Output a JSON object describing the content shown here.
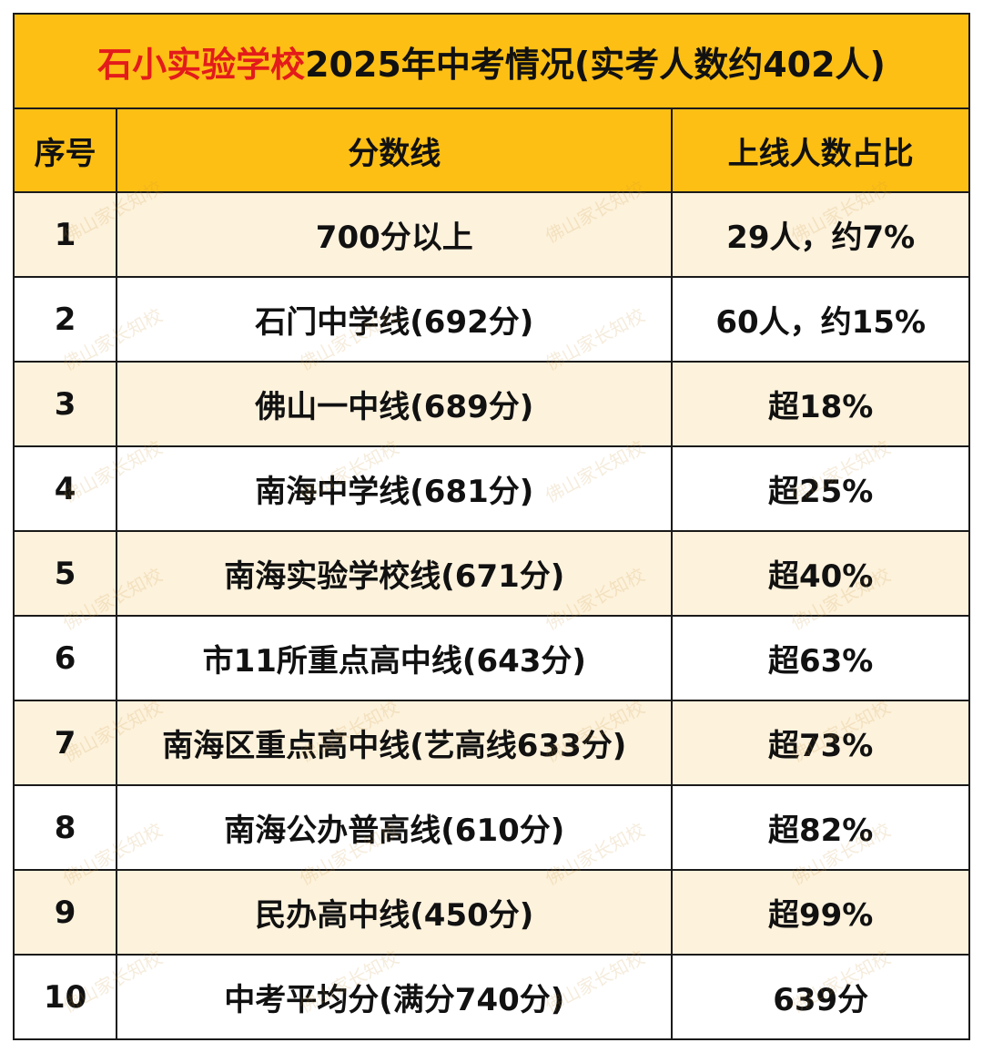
{
  "table": {
    "title_red": "石小实验学校",
    "title_black": "2025年中考情况(实考人数约402人)",
    "headers": [
      "序号",
      "分数线",
      "上线人数占比"
    ],
    "rows": [
      {
        "idx": "1",
        "line": "700分以上",
        "ratio": "29人，约7%"
      },
      {
        "idx": "2",
        "line": "石门中学线(692分)",
        "ratio": "60人，约15%"
      },
      {
        "idx": "3",
        "line": "佛山一中线(689分)",
        "ratio": "超18%"
      },
      {
        "idx": "4",
        "line": "南海中学线(681分)",
        "ratio": "超25%"
      },
      {
        "idx": "5",
        "line": "南海实验学校线(671分)",
        "ratio": "超40%"
      },
      {
        "idx": "6",
        "line": "市11所重点高中线(643分)",
        "ratio": "超63%"
      },
      {
        "idx": "7",
        "line": "南海区重点高中线(艺高线633分)",
        "ratio": "超73%"
      },
      {
        "idx": "8",
        "line": "南海公办普高线(610分)",
        "ratio": "超82%"
      },
      {
        "idx": "9",
        "line": "民办高中线(450分)",
        "ratio": "超99%"
      },
      {
        "idx": "10",
        "line": "中考平均分(满分740分)",
        "ratio": "639分"
      }
    ]
  },
  "watermark": {
    "text": "佛山家长知校"
  },
  "colors": {
    "header_bg": "#fdbf14",
    "shaded_row_bg": "#fdf2dc",
    "accent_red": "#e31b1b",
    "border": "#1a1a1a"
  }
}
